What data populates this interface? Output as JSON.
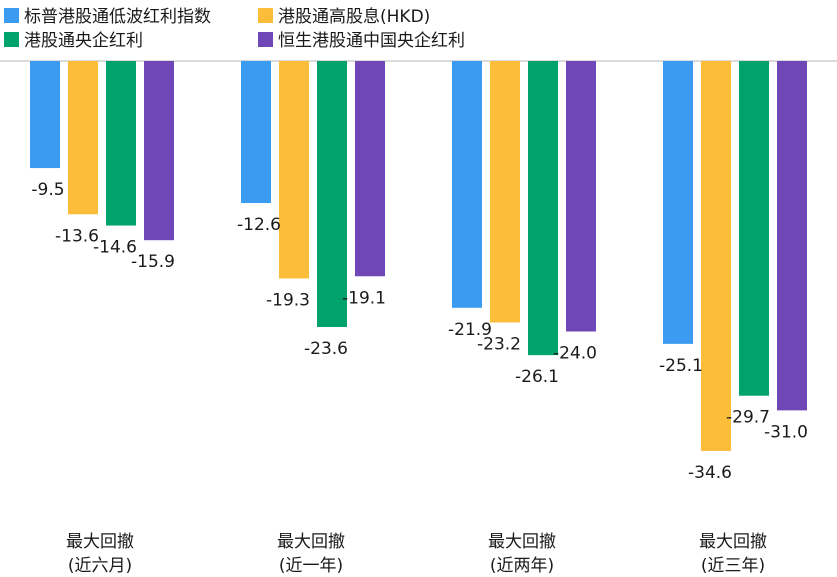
{
  "chart_data": {
    "type": "bar",
    "categories": [
      [
        "最大回撤",
        "(近六月)"
      ],
      [
        "最大回撤",
        "(近一年)"
      ],
      [
        "最大回撤",
        "(近两年)"
      ],
      [
        "最大回撤",
        "(近三年)"
      ]
    ],
    "series": [
      {
        "name": "标普港股通低波红利指数",
        "color": "#3a9bf0",
        "values": [
          -9.5,
          -12.6,
          -21.9,
          -25.1
        ]
      },
      {
        "name": "港股通高股息(HKD)",
        "color": "#fbbd3a",
        "values": [
          -13.6,
          -19.3,
          -23.2,
          -34.6
        ]
      },
      {
        "name": "港股通央企红利",
        "color": "#00a36b",
        "values": [
          -14.6,
          -23.6,
          -26.1,
          -29.7
        ]
      },
      {
        "name": "恒生港股通中国央企红利",
        "color": "#7047b7",
        "values": [
          -15.9,
          -19.1,
          -24.0,
          -31.0
        ]
      }
    ],
    "ylim": [
      -40,
      0
    ],
    "grid": false,
    "legend_position": "top-left",
    "value_labels": true
  }
}
